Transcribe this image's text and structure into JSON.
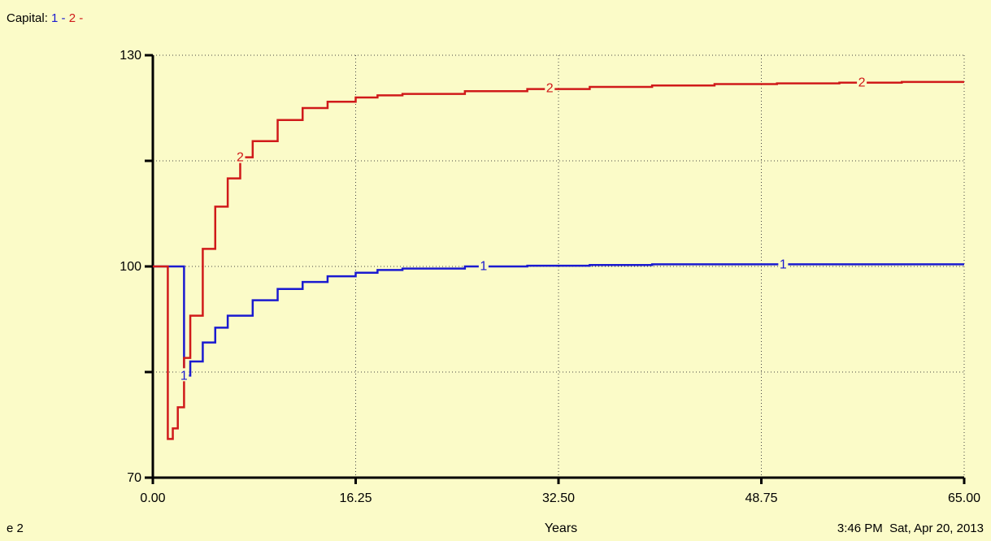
{
  "legend": {
    "prefix": "Capital:",
    "series1_label": "1",
    "sep1": "-",
    "series2_label": "2",
    "sep2": "-"
  },
  "footer": {
    "page_label": "e 2",
    "timestamp": "3:46 PM  Sat, Apr 20, 2013"
  },
  "colors": {
    "background": "#fbfbc8",
    "series1": "#1a1ad0",
    "series2": "#d01a1a"
  },
  "chart_data": {
    "type": "line",
    "title": "",
    "xlabel": "Years",
    "ylabel": "",
    "xlim": [
      0,
      65
    ],
    "ylim": [
      70,
      130
    ],
    "xticks": [
      "0.00",
      "16.25",
      "32.50",
      "48.75",
      "65.00"
    ],
    "yticks": [
      "70",
      "100",
      "130"
    ],
    "grid": true,
    "series": [
      {
        "name": "1",
        "x": [
          0,
          1,
          2,
          2.5,
          3,
          4,
          5,
          6,
          8,
          10,
          12,
          14,
          16.25,
          18,
          20,
          25,
          30,
          35,
          40,
          45,
          50,
          55,
          60,
          65
        ],
        "y": [
          100,
          100,
          100,
          84.5,
          86.5,
          89.2,
          91.3,
          93.0,
          95.2,
          96.8,
          97.8,
          98.6,
          99.1,
          99.5,
          99.7,
          100.0,
          100.1,
          100.2,
          100.3,
          100.3,
          100.3,
          100.3,
          100.3,
          100.3
        ]
      },
      {
        "name": "2",
        "x": [
          0,
          1,
          1.2,
          1.6,
          2,
          2.5,
          3,
          4,
          5,
          6,
          7,
          8,
          10,
          12,
          14,
          16.25,
          18,
          20,
          25,
          30,
          35,
          40,
          45,
          50,
          55,
          60,
          65
        ],
        "y": [
          100,
          100,
          75.5,
          77,
          80,
          87,
          93,
          102.5,
          108.5,
          112.5,
          115.5,
          117.8,
          120.8,
          122.5,
          123.4,
          124.0,
          124.3,
          124.5,
          124.9,
          125.2,
          125.5,
          125.7,
          125.9,
          126.0,
          126.1,
          126.2,
          126.2
        ]
      }
    ]
  }
}
